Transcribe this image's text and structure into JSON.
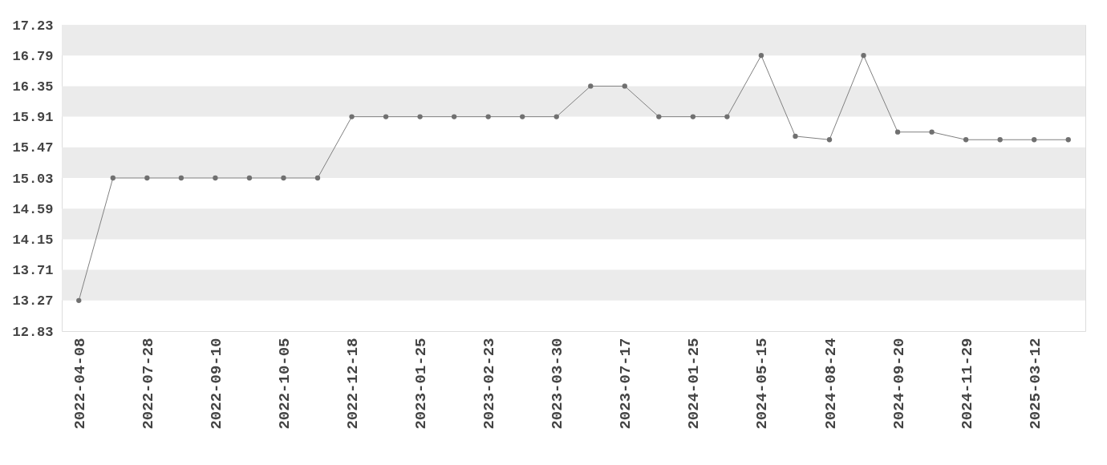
{
  "chart_data": {
    "type": "line",
    "categories": [
      "2022-04-08",
      null,
      "2022-07-28",
      null,
      "2022-09-10",
      null,
      "2022-10-05",
      null,
      "2022-12-18",
      null,
      "2023-01-25",
      null,
      "2023-02-23",
      null,
      "2023-03-30",
      null,
      "2023-07-17",
      null,
      "2024-01-25",
      null,
      "2024-05-15",
      null,
      "2024-08-24",
      null,
      "2024-09-20",
      null,
      "2024-11-29",
      null,
      "2025-03-12",
      null
    ],
    "series": [
      {
        "color": "#707070",
        "values": [
          13.27,
          15.03,
          15.03,
          15.03,
          15.03,
          15.03,
          15.03,
          15.03,
          15.91,
          15.91,
          15.91,
          15.91,
          15.91,
          15.91,
          15.91,
          16.35,
          16.35,
          15.91,
          15.91,
          15.91,
          16.79,
          15.63,
          15.58,
          16.79,
          15.69,
          15.69,
          15.58,
          15.58,
          15.58,
          15.58
        ]
      }
    ],
    "ylim": [
      12.83,
      17.23
    ],
    "yticks": [
      12.83,
      13.27,
      13.71,
      14.15,
      14.59,
      15.03,
      15.47,
      15.91,
      16.35,
      16.79,
      17.23
    ],
    "bands": [
      {
        "axis": "y",
        "from": 13.27,
        "to": 13.71,
        "color": "#ebebeb"
      },
      {
        "axis": "y",
        "from": 14.15,
        "to": 14.59,
        "color": "#ebebeb"
      },
      {
        "axis": "y",
        "from": 15.03,
        "to": 15.47,
        "color": "#ebebeb"
      },
      {
        "axis": "y",
        "from": 15.91,
        "to": 16.35,
        "color": "#ebebeb"
      },
      {
        "axis": "y",
        "from": 16.79,
        "to": 17.23,
        "color": "#ebebeb"
      }
    ],
    "grid": false,
    "marker": "circle",
    "line_style": "solid"
  }
}
